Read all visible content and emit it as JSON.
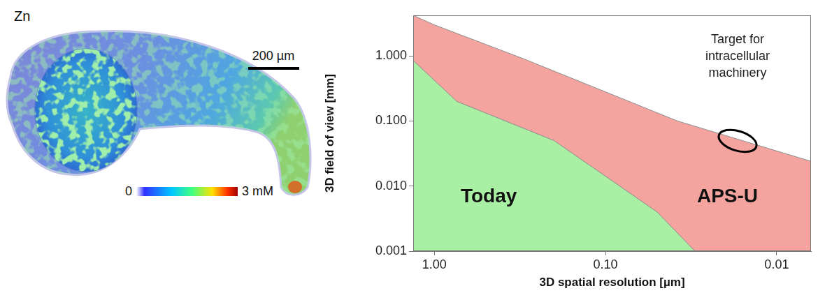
{
  "chart_data": {
    "type": "area",
    "x_label": "3D spatial resolution [µm]",
    "y_label": "3D field of view [mm]",
    "log": true,
    "grid": false,
    "xlim": [
      1.33,
      0.0063
    ],
    "ylim": [
      0.001,
      4.2
    ],
    "xticks": [
      {
        "value": 1,
        "label": "1.00"
      },
      {
        "value": 0.1,
        "label": "0.10"
      },
      0.01
    ],
    "yticks": [
      0.001,
      {
        "value": 0.01,
        "label": "0.010"
      },
      {
        "value": 0.1,
        "label": "0.100"
      },
      {
        "value": 1,
        "label": "1.000"
      }
    ],
    "series": [
      {
        "name": "APS-U",
        "color": "#f4a39f",
        "x": [
          1.33,
          1,
          0.3,
          0.1,
          0.038,
          0.0063
        ],
        "values": [
          4.2,
          3,
          0.9,
          0.28,
          0.1,
          0.024
        ]
      },
      {
        "name": "Today",
        "color": "#a9f0a5",
        "x": [
          1.33,
          0.74,
          0.2,
          0.05,
          0.03
        ],
        "values": [
          0.85,
          0.2,
          0.05,
          0.004,
          0.001
        ]
      }
    ],
    "annotations": [
      {
        "text": "Target for intracellular machinery",
        "x": [
          0.022,
          0.013
        ],
        "y": [
          0.035,
          0.07
        ]
      }
    ]
  },
  "zn_map": {
    "title": "Zn",
    "scale_bar": "200 µm",
    "colorbar": {
      "range": [
        0,
        3
      ],
      "ticks": [
        0,
        {
          "value": 3,
          "label": "3 mM"
        }
      ]
    }
  }
}
